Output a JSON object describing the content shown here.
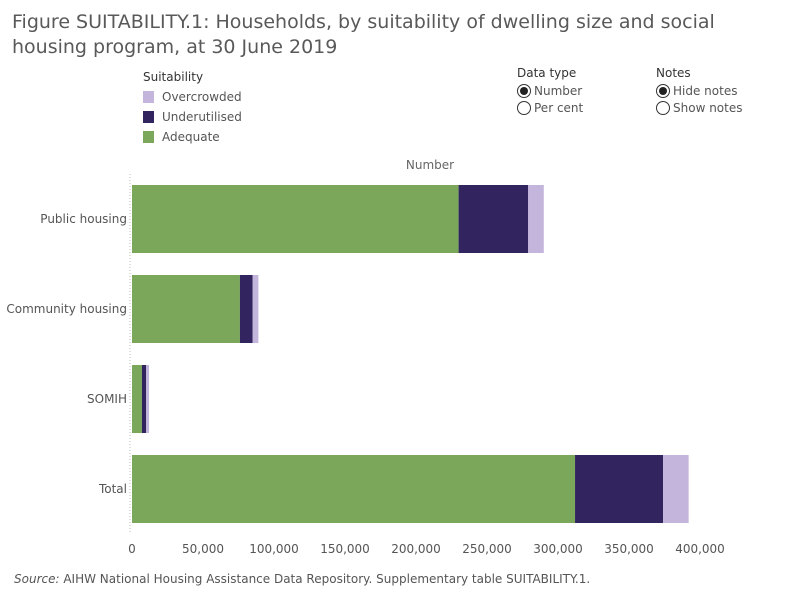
{
  "title": "Figure SUITABILITY.1: Households, by suitability of dwelling size and social housing program, at 30 June 2019",
  "legend": {
    "title": "Suitability",
    "items": [
      {
        "label": "Overcrowded",
        "color": "#c4b5dc"
      },
      {
        "label": "Underutilised",
        "color": "#31245f"
      },
      {
        "label": "Adequate",
        "color": "#7aa759"
      }
    ]
  },
  "data_type": {
    "title": "Data type",
    "options": [
      "Number",
      "Per cent"
    ],
    "selected": "Number"
  },
  "notes": {
    "title": "Notes",
    "options": [
      "Hide notes",
      "Show notes"
    ],
    "selected": "Hide notes"
  },
  "source": {
    "prefix": "Source:",
    "text": " AIHW National Housing Assistance Data Repository. Supplementary table SUITABILITY.1."
  },
  "chart_data": {
    "type": "bar",
    "orientation": "horizontal",
    "stacked": true,
    "xlabel": "Number",
    "categories": [
      "Public housing",
      "Community housing",
      "SOMIH",
      "Total"
    ],
    "series": [
      {
        "name": "Adequate",
        "color": "#7aa759",
        "values": [
          230000,
          76000,
          7000,
          312000
        ]
      },
      {
        "name": "Underutilised",
        "color": "#31245f",
        "values": [
          49000,
          9000,
          3000,
          62000
        ]
      },
      {
        "name": "Overcrowded",
        "color": "#c4b5dc",
        "values": [
          11000,
          4000,
          2000,
          18000
        ]
      }
    ],
    "xlim": [
      0,
      400000
    ],
    "xticks": [
      "0",
      "50,000",
      "100,000",
      "150,000",
      "200,000",
      "250,000",
      "300,000",
      "350,000",
      "400,000"
    ],
    "xtick_values": [
      0,
      50000,
      100000,
      150000,
      200000,
      250000,
      300000,
      350000,
      400000
    ],
    "grid": false
  }
}
